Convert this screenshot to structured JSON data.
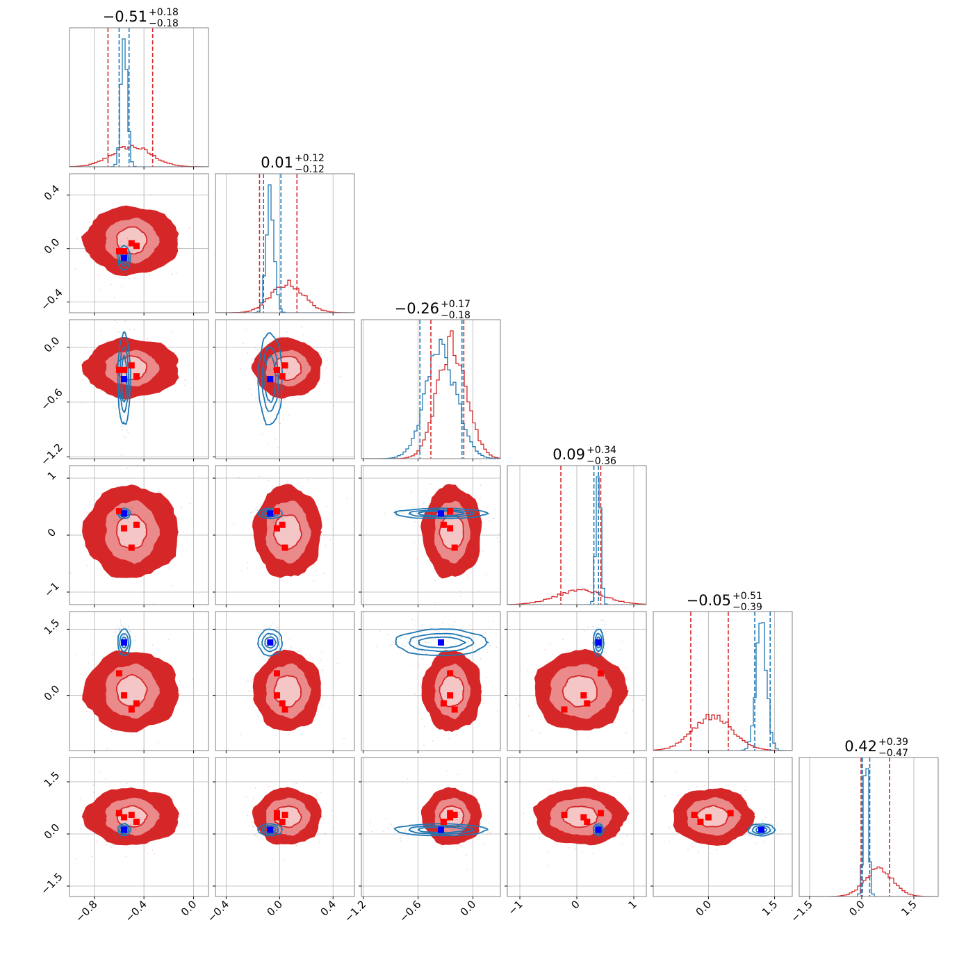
{
  "chart_data": {
    "type": "corner",
    "grid": true,
    "colors": {
      "series_a": "#d62728",
      "series_b": "#1f77b4",
      "truth_a": "#ff0000",
      "truth_b": "#0000ff"
    },
    "series": [
      {
        "color": "#d62728",
        "means": [
          -0.5,
          0.06,
          -0.23,
          0.06,
          0.1,
          0.5
        ],
        "sigmas": [
          0.16,
          0.12,
          0.16,
          0.42,
          0.45,
          0.4
        ],
        "contour_extents": [
          [
            0.12,
            0.22,
            0.38
          ],
          [
            0.1,
            0.17,
            0.25
          ],
          [
            0.13,
            0.2,
            0.32
          ],
          [
            0.3,
            0.55,
            0.8
          ],
          [
            0.35,
            0.62,
            0.9
          ],
          [
            0.3,
            0.55,
            0.8
          ]
        ]
      },
      {
        "color": "#1f77b4",
        "means": [
          -0.56,
          -0.07,
          -0.35,
          0.38,
          1.2,
          0.12
        ],
        "sigmas": [
          0.025,
          0.03,
          0.17,
          0.04,
          0.12,
          0.07
        ],
        "contour_extents": [
          [
            0.02,
            0.035,
            0.05
          ],
          [
            0.04,
            0.06,
            0.09
          ],
          [
            0.25,
            0.35,
            0.5
          ],
          [
            0.04,
            0.06,
            0.09
          ],
          [
            0.12,
            0.2,
            0.3
          ],
          [
            0.08,
            0.12,
            0.17
          ]
        ]
      }
    ],
    "quantiles": [
      {
        "color": "#d62728",
        "lines": [
          [
            -0.69,
            -0.33
          ],
          [
            -0.15,
            0.13
          ],
          [
            -0.46,
            -0.1
          ],
          [
            -0.28,
            0.42
          ],
          [
            -0.4,
            0.45
          ],
          [
            -0.02,
            0.8
          ]
        ]
      },
      {
        "color": "#1f77b4",
        "lines": [
          [
            -0.6,
            -0.52
          ],
          [
            -0.12,
            0.01
          ],
          [
            -0.58,
            -0.12
          ],
          [
            0.3,
            0.38
          ],
          [
            1.05,
            1.4
          ],
          [
            0.02,
            0.23
          ]
        ]
      }
    ],
    "truth_points": {
      "blue": [
        -0.56,
        -0.07,
        -0.35,
        0.38,
        1.2,
        0.12
      ],
      "red": [
        [
          -0.6,
          -0.02,
          -0.25,
          0.42,
          0.5,
          0.6
        ],
        [
          -0.56,
          -0.02,
          -0.25,
          0.12,
          0.0,
          0.48
        ],
        [
          -0.5,
          0.04,
          -0.2,
          -0.22,
          -0.32,
          0.55
        ],
        [
          -0.46,
          0.02,
          -0.32,
          0.18,
          -0.18,
          0.35
        ]
      ]
    },
    "axes": [
      {
        "range": [
          -1.0,
          0.12
        ],
        "ticks": [
          -0.8,
          -0.4,
          0.0
        ],
        "tick_labels": [
          "−0.8",
          "−0.4",
          "0.0"
        ]
      },
      {
        "range": [
          -0.48,
          0.56
        ],
        "ticks": [
          -0.4,
          0.0,
          0.4
        ],
        "tick_labels": [
          "−0.4",
          "0.0",
          "0.4"
        ]
      },
      {
        "range": [
          -1.22,
          0.3
        ],
        "ticks": [
          -1.2,
          -0.6,
          0.0
        ],
        "tick_labels": [
          "−1.2",
          "−0.6",
          "0.0"
        ]
      },
      {
        "range": [
          -1.22,
          1.22
        ],
        "ticks": [
          -1,
          0,
          1
        ],
        "tick_labels": [
          "−1",
          "0",
          "1"
        ]
      },
      {
        "range": [
          -1.25,
          1.9
        ],
        "ticks": [
          0.0,
          1.5
        ],
        "tick_labels": [
          "0.0",
          "1.5"
        ]
      },
      {
        "range": [
          -1.8,
          2.2
        ],
        "ticks": [
          -1.5,
          0.0,
          1.5
        ],
        "tick_labels": [
          "−1.5",
          "0.0",
          "1.5"
        ]
      }
    ],
    "y_axes": [
      null,
      {
        "ticks": [
          -0.4,
          0.0,
          0.4
        ],
        "tick_labels": [
          "−0.4",
          "0.0",
          "0.4"
        ]
      },
      {
        "ticks": [
          -1.2,
          -0.6,
          0.0
        ],
        "tick_labels": [
          "−1.2",
          "−0.6",
          "0.0"
        ]
      },
      {
        "ticks": [
          -1,
          0,
          1
        ],
        "tick_labels": [
          "−1",
          "0",
          "1"
        ]
      },
      {
        "ticks": [
          0.0,
          1.5
        ],
        "tick_labels": [
          "0.0",
          "1.5"
        ]
      },
      {
        "ticks": [
          -1.5,
          0.0,
          1.5
        ],
        "tick_labels": [
          "−1.5",
          "0.0",
          "1.5"
        ]
      }
    ],
    "titles": [
      {
        "main": "−0.51",
        "plus": "+0.18",
        "minus": "−0.18"
      },
      {
        "main": "0.01",
        "plus": "+0.12",
        "minus": "−0.12"
      },
      {
        "main": "−0.26",
        "plus": "+0.17",
        "minus": "−0.18"
      },
      {
        "main": "0.09",
        "plus": "+0.34",
        "minus": "−0.36"
      },
      {
        "main": "−0.05",
        "plus": "+0.51",
        "minus": "−0.39"
      },
      {
        "main": "0.42",
        "plus": "+0.39",
        "minus": "−0.47"
      }
    ]
  }
}
